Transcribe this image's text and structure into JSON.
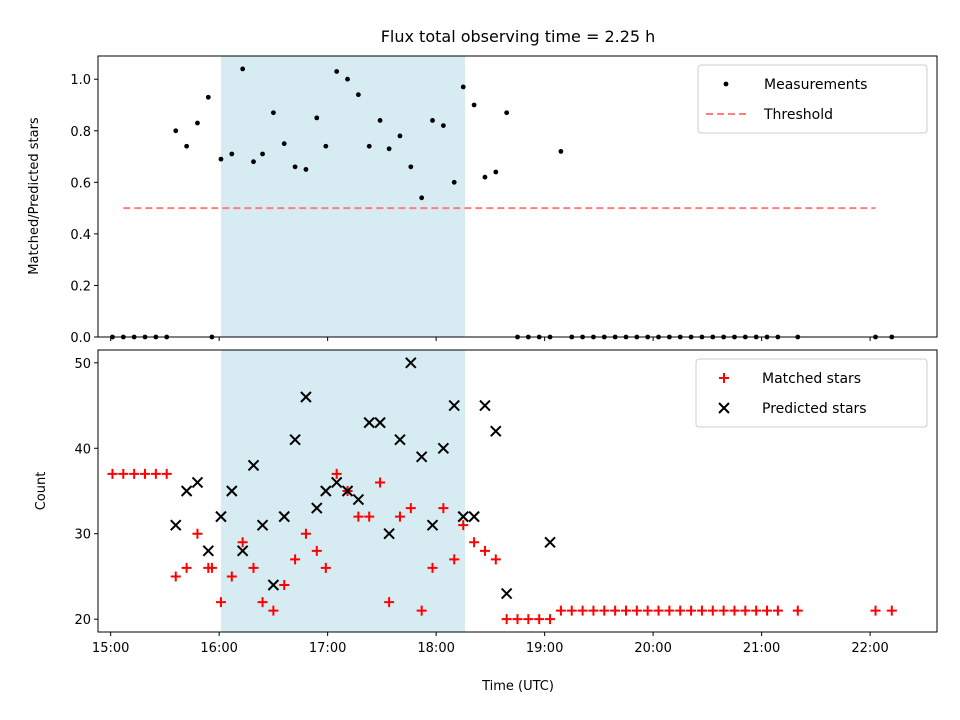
{
  "title": "Flux total observing time = 2.25 h",
  "chart_data": [
    {
      "type": "scatter",
      "xlabel": "",
      "ylabel": "Matched/Predicted stars",
      "xlim": [
        "14:53",
        "22:37"
      ],
      "ylim": [
        0,
        1.09
      ],
      "yticks": [
        "0.0",
        "0.2",
        "0.4",
        "0.6",
        "0.8",
        "1.0"
      ],
      "highlight_span": [
        "16:01",
        "18:16"
      ],
      "legend": {
        "placement": "top-right",
        "entries": [
          "Measurements",
          "Threshold"
        ]
      },
      "series": [
        {
          "name": "Measurements",
          "marker": "dot",
          "color": "#000000",
          "x": [
            "15:01",
            "15:07",
            "15:13",
            "15:19",
            "15:25",
            "15:31",
            "15:36",
            "15:42",
            "15:48",
            "15:54",
            "15:56",
            "16:01",
            "16:07",
            "16:13",
            "16:19",
            "16:24",
            "16:30",
            "16:36",
            "16:42",
            "16:48",
            "16:54",
            "16:59",
            "17:05",
            "17:11",
            "17:17",
            "17:23",
            "17:29",
            "17:34",
            "17:40",
            "17:46",
            "17:52",
            "17:58",
            "18:04",
            "18:10",
            "18:15",
            "18:21",
            "18:27",
            "18:33",
            "18:39",
            "18:45",
            "18:51",
            "18:57",
            "19:03",
            "19:09",
            "19:15",
            "19:21",
            "19:27",
            "19:33",
            "19:39",
            "19:45",
            "19:51",
            "19:57",
            "20:03",
            "20:09",
            "20:15",
            "20:21",
            "20:27",
            "20:33",
            "20:39",
            "20:45",
            "20:51",
            "20:57",
            "21:03",
            "21:09",
            "21:20",
            "22:03",
            "22:12"
          ],
          "y": [
            0,
            0,
            0,
            0,
            0,
            0,
            0.8,
            0.74,
            0.83,
            0.93,
            0,
            0.69,
            0.71,
            1.04,
            0.68,
            0.71,
            0.87,
            0.75,
            0.66,
            0.65,
            0.85,
            0.74,
            1.03,
            1.0,
            0.94,
            0.74,
            0.84,
            0.73,
            0.78,
            0.66,
            0.54,
            0.84,
            0.82,
            0.6,
            0.97,
            0.9,
            0.62,
            0.64,
            0.87,
            0,
            0,
            0,
            0,
            0.72,
            0,
            0,
            0,
            0,
            0,
            0,
            0,
            0,
            0,
            0,
            0,
            0,
            0,
            0,
            0,
            0,
            0,
            0,
            0,
            0,
            0,
            0,
            0
          ]
        },
        {
          "name": "Threshold",
          "marker": "dashed-line",
          "color": "#ff7f7f",
          "x": [
            "15:07",
            "22:03"
          ],
          "y": [
            0.5,
            0.5
          ]
        }
      ]
    },
    {
      "type": "scatter",
      "xlabel": "Time (UTC)",
      "ylabel": "Count",
      "xlim": [
        "14:53",
        "22:37"
      ],
      "ylim": [
        18.5,
        51.5
      ],
      "xticks": [
        "15:00",
        "16:00",
        "17:00",
        "18:00",
        "19:00",
        "20:00",
        "21:00",
        "22:00"
      ],
      "yticks": [
        "20",
        "30",
        "40",
        "50"
      ],
      "highlight_span": [
        "16:01",
        "18:16"
      ],
      "legend": {
        "placement": "top-right",
        "entries": [
          "Matched stars",
          "Predicted stars"
        ]
      },
      "series": [
        {
          "name": "Matched stars",
          "marker": "plus",
          "color": "#ff0000",
          "x": [
            "15:01",
            "15:07",
            "15:13",
            "15:19",
            "15:25",
            "15:31",
            "15:36",
            "15:42",
            "15:48",
            "15:54",
            "15:56",
            "16:01",
            "16:07",
            "16:13",
            "16:19",
            "16:24",
            "16:30",
            "16:36",
            "16:42",
            "16:48",
            "16:54",
            "16:59",
            "17:05",
            "17:11",
            "17:17",
            "17:23",
            "17:29",
            "17:34",
            "17:40",
            "17:46",
            "17:52",
            "17:58",
            "18:04",
            "18:10",
            "18:15",
            "18:21",
            "18:27",
            "18:33",
            "18:39",
            "18:45",
            "18:51",
            "18:57",
            "19:03",
            "19:09",
            "19:15",
            "19:21",
            "19:27",
            "19:33",
            "19:39",
            "19:45",
            "19:51",
            "19:57",
            "20:03",
            "20:09",
            "20:15",
            "20:21",
            "20:27",
            "20:33",
            "20:39",
            "20:45",
            "20:51",
            "20:57",
            "21:03",
            "21:09",
            "21:20",
            "22:03",
            "22:12"
          ],
          "y": [
            37,
            37,
            37,
            37,
            37,
            37,
            25,
            26,
            30,
            26,
            26,
            22,
            25,
            29,
            26,
            22,
            21,
            24,
            27,
            30,
            28,
            26,
            37,
            35,
            32,
            32,
            36,
            22,
            32,
            33,
            21,
            26,
            33,
            27,
            31,
            29,
            28,
            27,
            20,
            20,
            20,
            20,
            20,
            21,
            21,
            21,
            21,
            21,
            21,
            21,
            21,
            21,
            21,
            21,
            21,
            21,
            21,
            21,
            21,
            21,
            21,
            21,
            21,
            21,
            21,
            21,
            21
          ]
        },
        {
          "name": "Predicted stars",
          "marker": "x",
          "color": "#000000",
          "x": [
            "15:36",
            "15:42",
            "15:48",
            "15:54",
            "16:01",
            "16:07",
            "16:13",
            "16:19",
            "16:24",
            "16:30",
            "16:36",
            "16:42",
            "16:48",
            "16:54",
            "16:59",
            "17:05",
            "17:11",
            "17:17",
            "17:23",
            "17:29",
            "17:34",
            "17:40",
            "17:46",
            "17:52",
            "17:58",
            "18:04",
            "18:10",
            "18:15",
            "18:21",
            "18:27",
            "18:33",
            "18:39",
            "19:03"
          ],
          "y": [
            31,
            35,
            36,
            28,
            32,
            35,
            28,
            38,
            31,
            24,
            32,
            41,
            46,
            33,
            35,
            36,
            35,
            34,
            43,
            43,
            30,
            41,
            50,
            39,
            31,
            40,
            45,
            32,
            32,
            45,
            42,
            23,
            29
          ]
        }
      ]
    }
  ]
}
